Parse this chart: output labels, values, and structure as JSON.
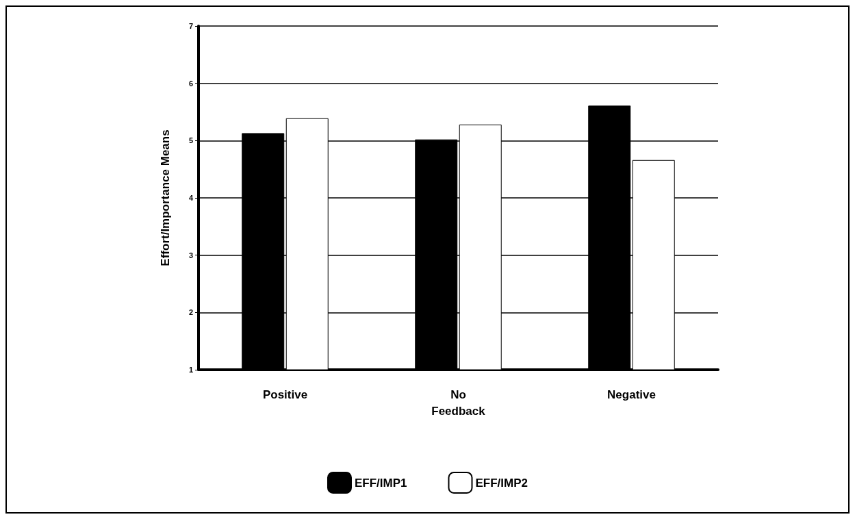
{
  "chart_data": {
    "type": "bar",
    "ylabel": "Effort/Importance Means",
    "categories": [
      "Positive",
      "No\nFeedback",
      "Negative"
    ],
    "series": [
      {
        "name": "EFF/IMP1",
        "color": "#000000",
        "values": [
          5.13,
          5.02,
          5.61
        ]
      },
      {
        "name": "EFF/IMP2",
        "color": "#ffffff",
        "values": [
          5.39,
          5.28,
          4.66
        ]
      }
    ],
    "ylim": [
      1,
      7
    ],
    "yticks": [
      1,
      2,
      3,
      4,
      5,
      6,
      7
    ],
    "grid": "y",
    "legend": "bottom"
  }
}
